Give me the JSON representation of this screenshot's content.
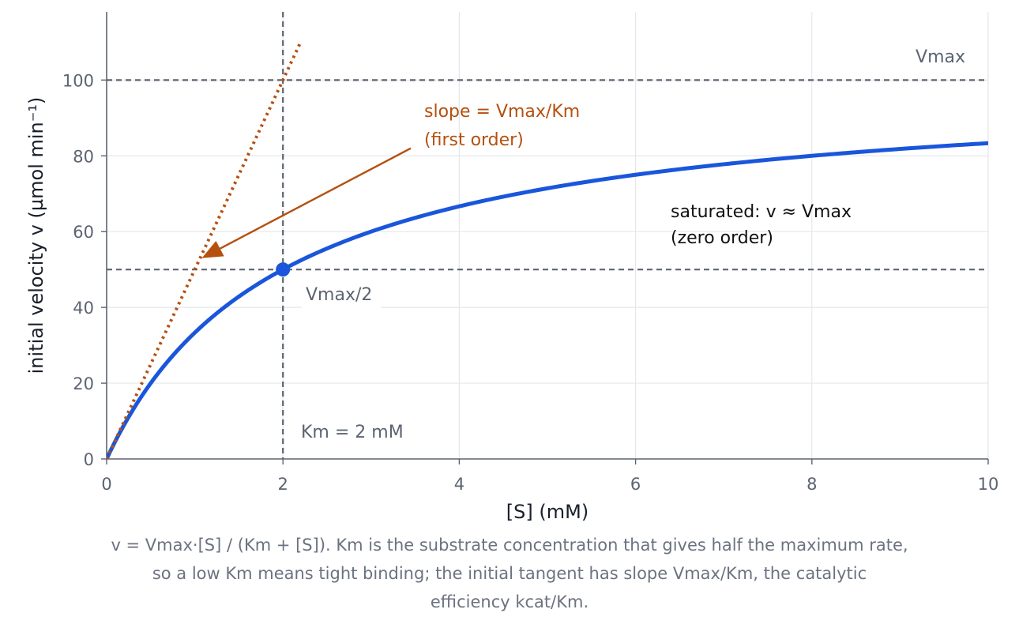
{
  "chart_data": {
    "type": "line",
    "x_axis": {
      "label": "[S] (mM)",
      "lim": [
        0,
        10
      ],
      "ticks": [
        0,
        2,
        4,
        6,
        8,
        10
      ],
      "tick_labels": [
        "0",
        "2",
        "4",
        "6",
        "8",
        "10"
      ]
    },
    "y_axis": {
      "label": "initial velocity v (µmol min⁻¹)",
      "lim": [
        0,
        118
      ],
      "ticks": [
        0,
        20,
        40,
        60,
        80,
        100
      ],
      "tick_labels": [
        "0",
        "20",
        "40",
        "60",
        "80",
        "100"
      ]
    },
    "grid": true,
    "series": [
      {
        "kind": "michaelis-menten-curve",
        "Vmax": 100,
        "Km": 2,
        "x": [
          0,
          0.25,
          0.5,
          0.75,
          1,
          1.5,
          2,
          2.5,
          3,
          4,
          5,
          6,
          7,
          8,
          9,
          10
        ],
        "y": [
          0,
          11.1,
          20.0,
          27.3,
          33.3,
          42.9,
          50.0,
          55.6,
          60.0,
          66.7,
          71.4,
          75.0,
          77.8,
          80.0,
          81.8,
          83.3
        ],
        "color": "#1a56db"
      },
      {
        "kind": "initial-tangent",
        "x": [
          0,
          2.2
        ],
        "y": [
          0,
          110
        ],
        "style": "dotted",
        "color": "#b5500f"
      }
    ],
    "reference_lines": {
      "vmax_y": 100,
      "half_vmax_y": 50,
      "km_x": 2,
      "color": "#5b6472"
    },
    "highlight_point": {
      "x": 2,
      "y": 50,
      "color": "#1a56db"
    },
    "annotations": {
      "vmax": "Vmax",
      "half_vmax": "Vmax/2",
      "km": "Km = 2 mM",
      "saturated": [
        "saturated: v ≈ Vmax",
        "(zero order)"
      ],
      "slope": [
        "slope = Vmax/Km",
        "(first order)"
      ]
    },
    "slope_arrow": {
      "from": [
        3.45,
        82
      ],
      "to": [
        1.08,
        53
      ],
      "color": "#b5500f"
    }
  },
  "caption": [
    "v = Vmax·[S] / (Km + [S]). Km is the substrate concentration that gives half the maximum rate,",
    "so a low Km means tight binding; the initial tangent has slope Vmax/Km, the catalytic",
    "efficiency kcat/Km."
  ]
}
